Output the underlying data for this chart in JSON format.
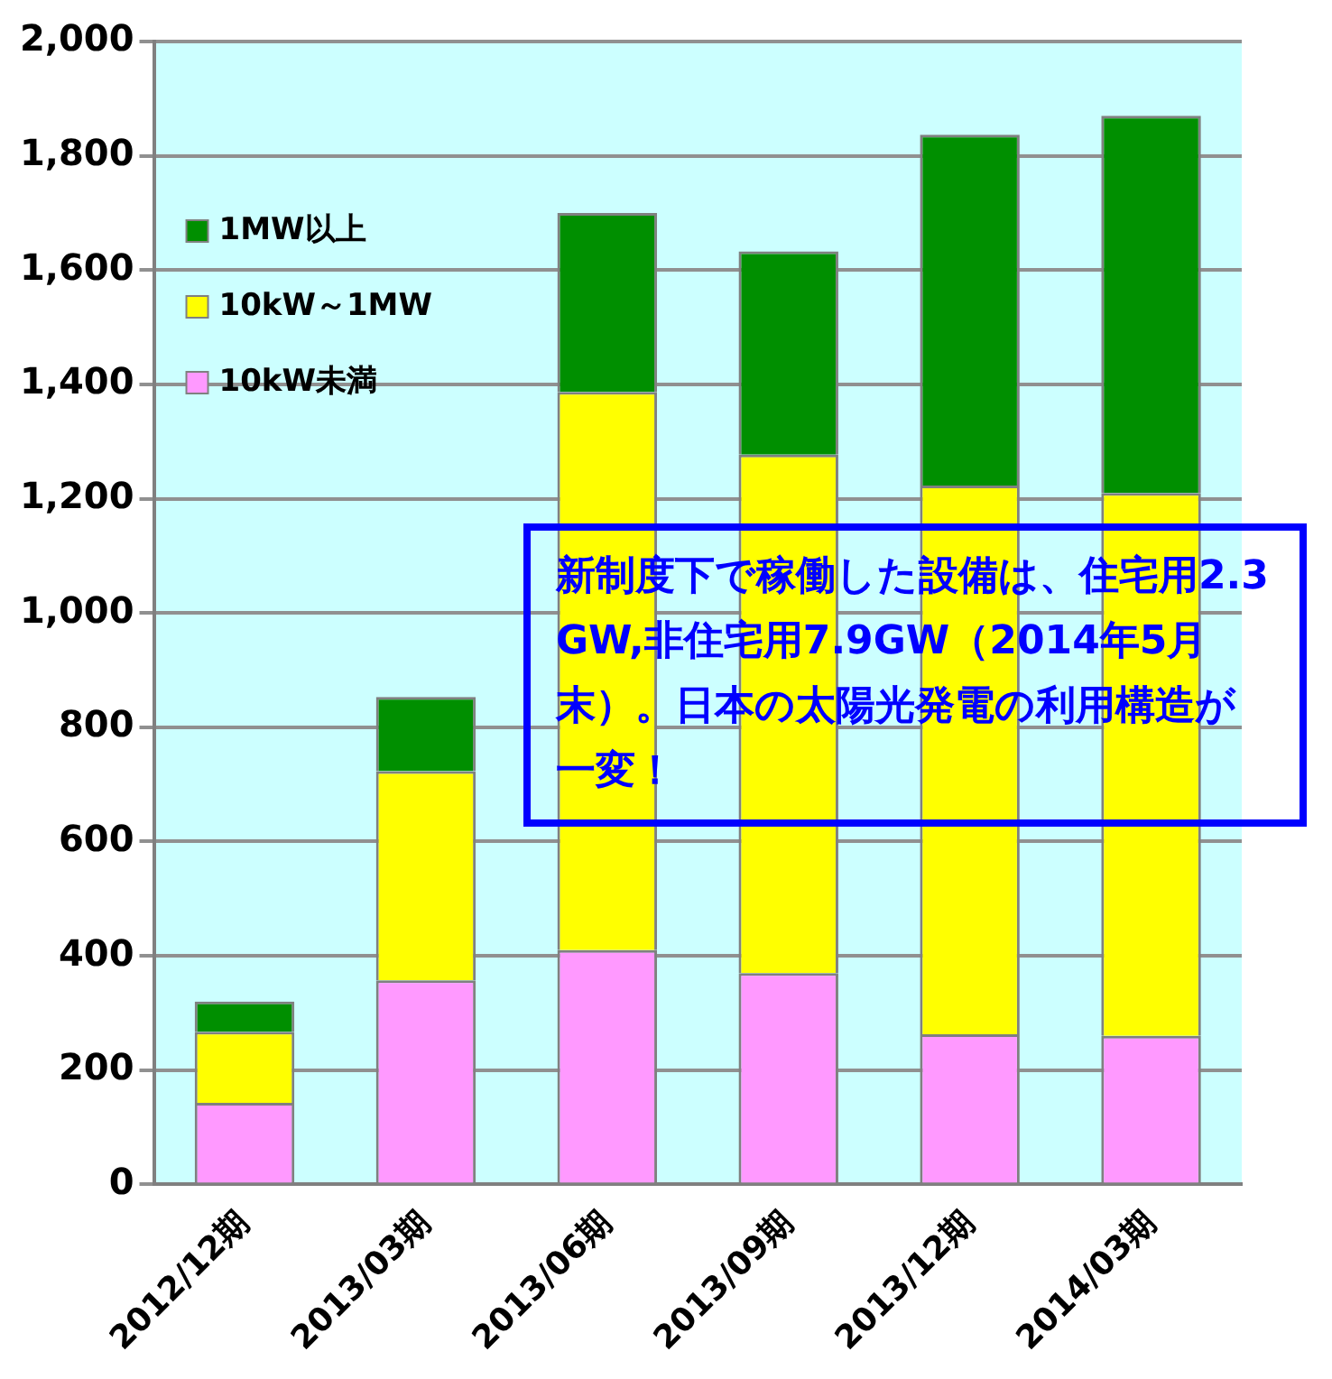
{
  "chart_data": {
    "type": "bar",
    "stacked": true,
    "categories": [
      "2012/12期",
      "2013/03期",
      "2013/06期",
      "2013/09期",
      "2013/12期",
      "2014/03期"
    ],
    "series": [
      {
        "name": "10kW未満",
        "color": "#ff99ff",
        "values": [
          143,
          357,
          410,
          370,
          263,
          260
        ]
      },
      {
        "name": "10kW～1MW",
        "color": "#ffff00",
        "values": [
          124,
          366,
          977,
          907,
          960,
          950
        ]
      },
      {
        "name": "1MW以上",
        "color": "#008f00",
        "values": [
          53,
          130,
          313,
          356,
          614,
          660
        ]
      }
    ],
    "ylim": [
      0,
      2000
    ],
    "yticks": [
      0,
      {
        "value": 200,
        "label": "200"
      },
      {
        "value": 400,
        "label": "400"
      },
      {
        "value": 600,
        "label": "600"
      },
      {
        "value": 800,
        "label": "800"
      },
      {
        "value": 1000,
        "label": "1,000"
      },
      {
        "value": 1200,
        "label": "1,200"
      },
      {
        "value": 1400,
        "label": "1,400"
      },
      {
        "value": 1600,
        "label": "1,600"
      },
      {
        "value": 1800,
        "label": "1,800"
      },
      {
        "value": 2000,
        "label": "2,000"
      }
    ],
    "grid": "y",
    "legend": "top left",
    "annotations": [
      "新制度下で稼働した設備は、住宅用2.3GW,非住宅用7.9GW（2014年5月末）。日本の太陽光発電の利用構造が一変！"
    ]
  }
}
